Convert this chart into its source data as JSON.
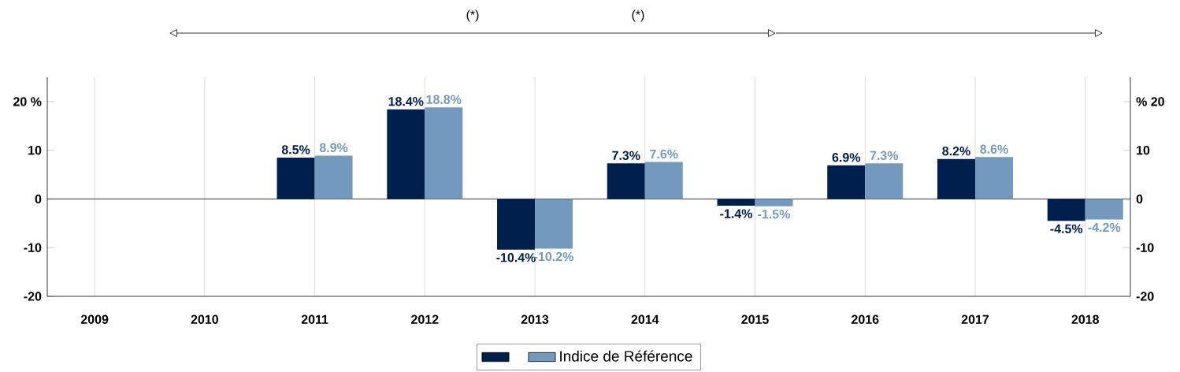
{
  "chart_data": {
    "type": "bar",
    "categories": [
      "2009",
      "2010",
      "2011",
      "2012",
      "2013",
      "2014",
      "2015",
      "2016",
      "2017",
      "2018"
    ],
    "series": [
      {
        "color": "#001f4d",
        "values": [
          null,
          null,
          8.5,
          18.4,
          -10.4,
          7.3,
          -1.4,
          6.9,
          8.2,
          -4.5
        ],
        "value_labels": [
          null,
          null,
          "8.5%",
          "18.4%",
          "-10.4%",
          "7.3%",
          "-1.4%",
          "6.9%",
          "8.2%",
          "-4.5%"
        ]
      },
      {
        "name": "Indice de Référence",
        "color": "#7399bf",
        "values": [
          null,
          null,
          8.9,
          18.8,
          -10.2,
          7.6,
          -1.5,
          7.3,
          8.6,
          -4.2
        ],
        "value_labels": [
          null,
          null,
          "8.9%",
          "18.8%",
          "-10.2%",
          "7.6%",
          "-1.5%",
          "7.3%",
          "8.6%",
          "-4.2%"
        ]
      }
    ],
    "ylim": [
      -20,
      25
    ],
    "yticks": [
      -20,
      -10,
      0,
      10,
      {
        "value": 20,
        "label": "20 %"
      }
    ],
    "y2lim": [
      -20,
      25
    ],
    "y2ticks": [
      -20,
      -10,
      0,
      10,
      {
        "value": 20,
        "label": "% 20"
      }
    ],
    "grid": "x",
    "legend": "bottom",
    "annotations": [
      "(*)",
      "(*)"
    ]
  }
}
